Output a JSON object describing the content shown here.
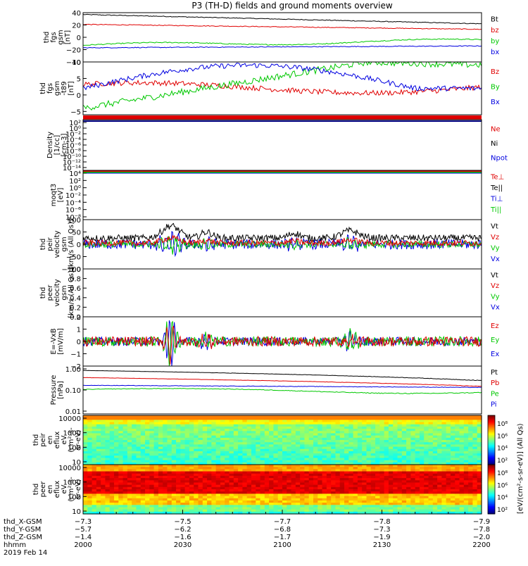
{
  "title": "P3 (TH-D) fields and ground moments overview",
  "colors": {
    "black": "#000000",
    "red": "#e00000",
    "green": "#00c800",
    "blue": "#0000e0"
  },
  "panels": [
    {
      "id": "fgs",
      "ylabel": [
        "thd",
        "fgs",
        "gsm",
        "[nT]"
      ],
      "ticks": [
        "40",
        "20",
        "0",
        "−20",
        "−40"
      ],
      "tickvals": [
        40,
        20,
        0,
        -20,
        -40
      ],
      "ylim": [
        -40,
        40
      ],
      "legend": [
        {
          "text": "Bt",
          "color": "black"
        },
        {
          "text": "bz",
          "color": "red"
        },
        {
          "text": "by",
          "color": "green"
        },
        {
          "text": "bx",
          "color": "blue"
        }
      ]
    },
    {
      "id": "fgs_dif",
      "ylabel": [
        "thd",
        "fgs",
        "gsm",
        "-t89",
        "[nT]"
      ],
      "ticks": [
        "10",
        "5",
        "0",
        "−5"
      ],
      "tickvals": [
        10,
        5,
        0,
        -5
      ],
      "ylim": [
        -6,
        10
      ],
      "legend": [
        {
          "text": "Bz",
          "color": "red"
        },
        {
          "text": "By",
          "color": "green"
        },
        {
          "text": "Bx",
          "color": "blue"
        }
      ]
    },
    {
      "id": "density",
      "ylabel": [
        "Density",
        "[1/cc]",
        "[cm-3]"
      ],
      "ticks": [
        "10²",
        "10⁰",
        "10⁻²",
        "10⁻⁴",
        "10⁻⁶",
        "10⁻⁸",
        "10⁻¹⁰",
        "10⁻¹²",
        "10⁻¹⁴"
      ],
      "legend": [
        {
          "text": "Ne",
          "color": "red"
        },
        {
          "text": "Ni",
          "color": "black"
        },
        {
          "text": "Npot",
          "color": "blue"
        }
      ]
    },
    {
      "id": "temp",
      "ylabel": [
        "moqt3",
        "[eV]"
      ],
      "ticks": [
        "10⁴",
        "10²",
        "10⁰",
        "10⁻²",
        "10⁻⁴",
        "10⁻⁶",
        "10⁻⁸"
      ],
      "legend": [
        {
          "text": "Te⊥",
          "color": "red"
        },
        {
          "text": "Te||",
          "color": "black"
        },
        {
          "text": "Ti⊥",
          "color": "blue"
        },
        {
          "text": "Ti||",
          "color": "green"
        }
      ]
    },
    {
      "id": "pvel",
      "ylabel": [
        "thd",
        "peir",
        "velocity",
        "gsm",
        "[km/s (All Qs)]"
      ],
      "ticks": [
        "100",
        "50",
        "0",
        "−50",
        "−100"
      ],
      "tickvals": [
        100,
        50,
        0,
        -50,
        -100
      ],
      "ylim": [
        -100,
        100
      ],
      "legend": [
        {
          "text": "Vt",
          "color": "black"
        },
        {
          "text": "Vz",
          "color": "red"
        },
        {
          "text": "Vy",
          "color": "green"
        },
        {
          "text": "Vx",
          "color": "blue"
        }
      ]
    },
    {
      "id": "evel",
      "ylabel": [
        "thd",
        "peer",
        "velocity",
        "gsm",
        "[km/s (All Qs)]"
      ],
      "ticks": [
        "1.0",
        "0.8",
        "0.6",
        "0.4",
        "0.2",
        "0.0"
      ],
      "tickvals": [
        1,
        0.8,
        0.6,
        0.4,
        0.2,
        0
      ],
      "ylim": [
        0,
        1
      ],
      "legend": [
        {
          "text": "Vt",
          "color": "black"
        },
        {
          "text": "Vz",
          "color": "red"
        },
        {
          "text": "Vy",
          "color": "green"
        },
        {
          "text": "Vx",
          "color": "blue"
        }
      ]
    },
    {
      "id": "efield",
      "ylabel": [
        "E=-VxB",
        "[mV/m]"
      ],
      "ticks": [
        "2",
        "1",
        "0",
        "−1",
        "−2"
      ],
      "tickvals": [
        2,
        1,
        0,
        -1,
        -2
      ],
      "ylim": [
        -2,
        2
      ],
      "legend": [
        {
          "text": "Ez",
          "color": "red"
        },
        {
          "text": "Ey",
          "color": "green"
        },
        {
          "text": "Ex",
          "color": "blue"
        }
      ]
    },
    {
      "id": "pressure",
      "ylabel": [
        "Pressure",
        "[nPa]"
      ],
      "ticks": [
        "1.00",
        "0.10",
        "0.01"
      ],
      "legend": [
        {
          "text": "Pt",
          "color": "black"
        },
        {
          "text": "Pb",
          "color": "red"
        },
        {
          "text": "Pe",
          "color": "green"
        },
        {
          "text": "Pi",
          "color": "blue"
        }
      ]
    },
    {
      "id": "ion_spec",
      "ylabel": [
        "thd",
        "peir",
        "en",
        "eflux",
        "eV",
        "(cm²-s-",
        "sr-eV)"
      ],
      "ticks": [
        "10000",
        "1000",
        "100",
        "10"
      ]
    },
    {
      "id": "ele_spec",
      "ylabel": [
        "thd",
        "peer",
        "en",
        "eflux",
        "eV",
        "(cm²-s-",
        "sr-eV)"
      ],
      "ticks": [
        "10000",
        "1000",
        "100",
        "10"
      ]
    }
  ],
  "colorbar": {
    "label": "[eV/(cm²-s-sr-eV)] (All Qs)",
    "ion_ticks": [
      "10⁸",
      "10⁶",
      "10⁴",
      "10²"
    ],
    "ele_ticks": [
      "10⁸",
      "10⁶",
      "10⁴",
      "10²"
    ]
  },
  "xaxis": {
    "rows": [
      {
        "label": "thd_X-GSM",
        "values": [
          "−7.3",
          "−7.5",
          "−7.7",
          "−7.8",
          "−7.9"
        ]
      },
      {
        "label": "thd_Y-GSM",
        "values": [
          "−5.7",
          "−6.2",
          "−6.8",
          "−7.3",
          "−7.8"
        ]
      },
      {
        "label": "thd_Z-GSM",
        "values": [
          "−1.4",
          "−1.6",
          "−1.7",
          "−1.9",
          "−2.0"
        ]
      },
      {
        "label": "hhmm",
        "values": [
          "2000",
          "2030",
          "2100",
          "2130",
          "2200"
        ]
      }
    ],
    "date": "2019 Feb 14"
  },
  "chart_data": {
    "type": "line",
    "title": "P3 (TH-D) fields and ground moments overview",
    "x": [
      "2000",
      "2030",
      "2100",
      "2130",
      "2200"
    ],
    "series": [
      {
        "name": "Bt",
        "values": [
          37,
          30,
          26,
          24,
          22
        ]
      },
      {
        "name": "bz",
        "values": [
          21,
          18,
          16,
          14,
          14
        ]
      },
      {
        "name": "by",
        "values": [
          -13,
          -10,
          -8,
          -5,
          -6
        ]
      },
      {
        "name": "bx",
        "values": [
          -17,
          -15,
          -14,
          -13,
          -15
        ]
      },
      {
        "name": "Pt",
        "values": [
          0.9,
          0.6,
          0.4,
          0.3,
          0.3
        ]
      },
      {
        "name": "Pb",
        "values": [
          0.45,
          0.3,
          0.22,
          0.18,
          0.18
        ]
      }
    ]
  }
}
